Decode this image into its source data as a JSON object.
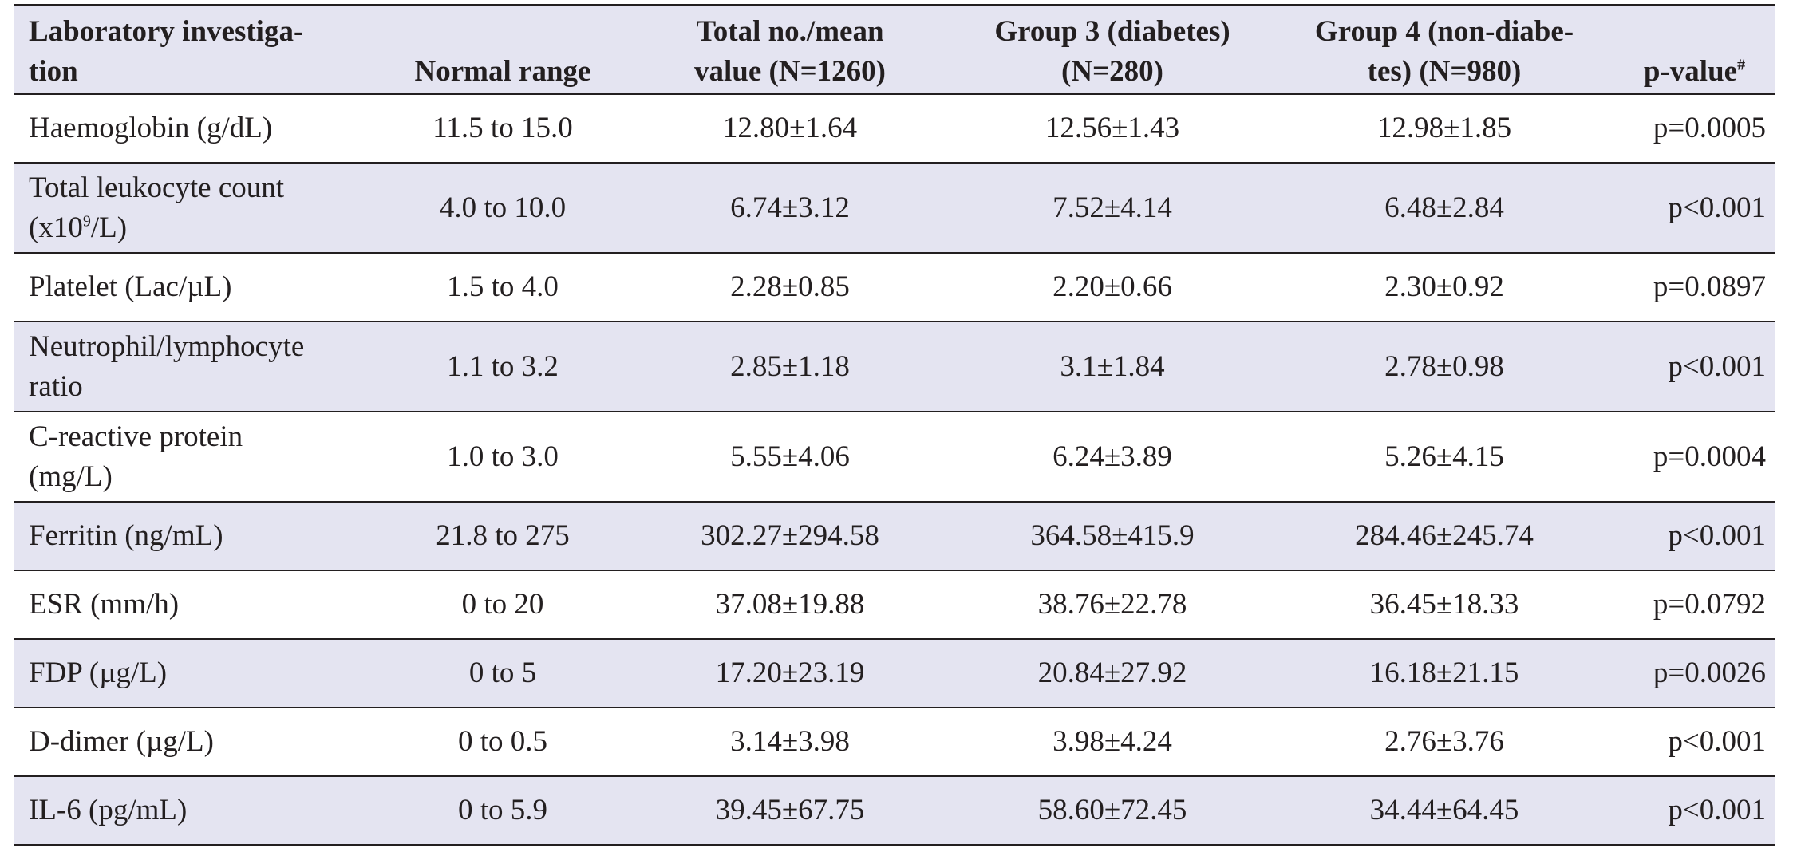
{
  "table": {
    "headers": {
      "investigation_line1": "Laboratory investiga-",
      "investigation_line2": "tion",
      "normal_range": "Normal range",
      "total_line1": "Total no./mean",
      "total_line2": "value (N=1260)",
      "group3_line1": "Group 3 (diabetes)",
      "group3_line2": "(N=280)",
      "group4_line1": "Group 4 (non-diabe-",
      "group4_line2": "tes) (N=980)",
      "pvalue": "p-value",
      "pvalue_mark": "#"
    },
    "rows": [
      {
        "name_line1": "Haemoglobin (g/dL)",
        "name_line2": "",
        "normal": "11.5 to 15.0",
        "total": "12.80±1.64",
        "group3": "12.56±1.43",
        "group4": "12.98±1.85",
        "p": "p=0.0005"
      },
      {
        "name_line1": "Total leukocyte count",
        "name_pre": "(x10",
        "name_sup": "9",
        "name_post": "/L)",
        "normal": "4.0 to 10.0",
        "total": "6.74±3.12",
        "group3": "7.52±4.14",
        "group4": "6.48±2.84",
        "p": "p<0.001"
      },
      {
        "name_line1": "Platelet (Lac/µL)",
        "name_line2": "",
        "normal": "1.5 to 4.0",
        "total": "2.28±0.85",
        "group3": "2.20±0.66",
        "group4": "2.30±0.92",
        "p": "p=0.0897"
      },
      {
        "name_line1": "Neutrophil/lymphocyte",
        "name_line2": "ratio",
        "normal": "1.1 to 3.2",
        "total": "2.85±1.18",
        "group3": "3.1±1.84",
        "group4": "2.78±0.98",
        "p": "p<0.001"
      },
      {
        "name_line1": "C-reactive protein",
        "name_line2": "(mg/L)",
        "normal": "1.0 to 3.0",
        "total": "5.55±4.06",
        "group3": "6.24±3.89",
        "group4": "5.26±4.15",
        "p": "p=0.0004"
      },
      {
        "name_line1": "Ferritin (ng/mL)",
        "name_line2": "",
        "normal": "21.8 to 275",
        "total": "302.27±294.58",
        "group3": "364.58±415.9",
        "group4": "284.46±245.74",
        "p": "p<0.001"
      },
      {
        "name_line1": "ESR (mm/h)",
        "name_line2": "",
        "normal": "0 to 20",
        "total": "37.08±19.88",
        "group3": "38.76±22.78",
        "group4": "36.45±18.33",
        "p": "p=0.0792"
      },
      {
        "name_line1": "FDP (µg/L)",
        "name_line2": "",
        "normal": "0 to 5",
        "total": "17.20±23.19",
        "group3": "20.84±27.92",
        "group4": "16.18±21.15",
        "p": "p=0.0026"
      },
      {
        "name_line1": "D-dimer (µg/L)",
        "name_line2": "",
        "normal": "0 to 0.5",
        "total": "3.14±3.98",
        "group3": "3.98±4.24",
        "group4": "2.76±3.76",
        "p": "p<0.001"
      },
      {
        "name_line1": "IL-6 (pg/mL)",
        "name_line2": "",
        "normal": "0 to 5.9",
        "total": "39.45±67.75",
        "group3": "58.60±72.45",
        "group4": "34.44±64.45",
        "p": "p<0.001"
      }
    ]
  }
}
